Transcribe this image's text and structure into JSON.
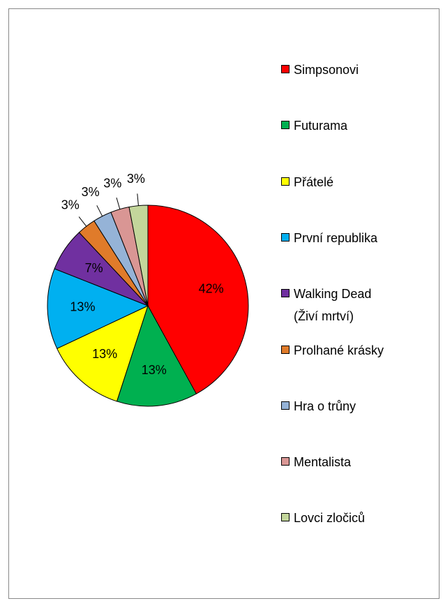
{
  "chart_data": {
    "type": "pie",
    "categories": [
      "Simpsonovi",
      "Futurama",
      "Přátelé",
      "První republika",
      "Walking Dead (Živí mrtví)",
      "Prolhané krásky",
      "Hra o trůny",
      "Mentalista",
      "Lovci zločiců"
    ],
    "values": [
      42,
      13,
      13,
      13,
      7,
      3,
      3,
      3,
      3
    ],
    "value_labels": [
      "42%",
      "13%",
      "13%",
      "13%",
      "7%",
      "3%",
      "3%",
      "3%",
      "3%"
    ],
    "colors": [
      "#ff0000",
      "#00b050",
      "#ffff00",
      "#00b0f0",
      "#7030a0",
      "#e07b2a",
      "#95b3d7",
      "#d99694",
      "#c3d69b"
    ],
    "legend": "right"
  }
}
